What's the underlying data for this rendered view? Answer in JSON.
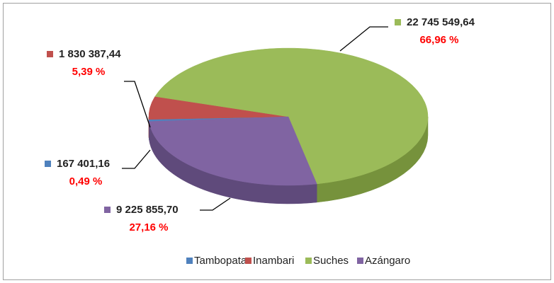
{
  "chart_data": {
    "type": "pie",
    "three_d": true,
    "categories": [
      "Tambopata",
      "Inambari",
      "Suches",
      "Azángaro"
    ],
    "values": [
      167401.16,
      1830387.44,
      22745549.64,
      9225855.7
    ],
    "value_labels": [
      "167 401,16",
      "1 830 387,44",
      "22 745 549,64",
      "9 225 855,70"
    ],
    "percentages": [
      0.49,
      5.39,
      66.96,
      27.16
    ],
    "percentage_labels": [
      "0,49 %",
      "5,39 %",
      "66,96 %",
      "27,16 %"
    ],
    "colors": [
      "#4f81bd",
      "#c0504d",
      "#9bbb59",
      "#8064a2"
    ],
    "side_colors": [
      "#3a6190",
      "#943b39",
      "#76923c",
      "#5f4a7b"
    ],
    "legend": "bottom"
  }
}
